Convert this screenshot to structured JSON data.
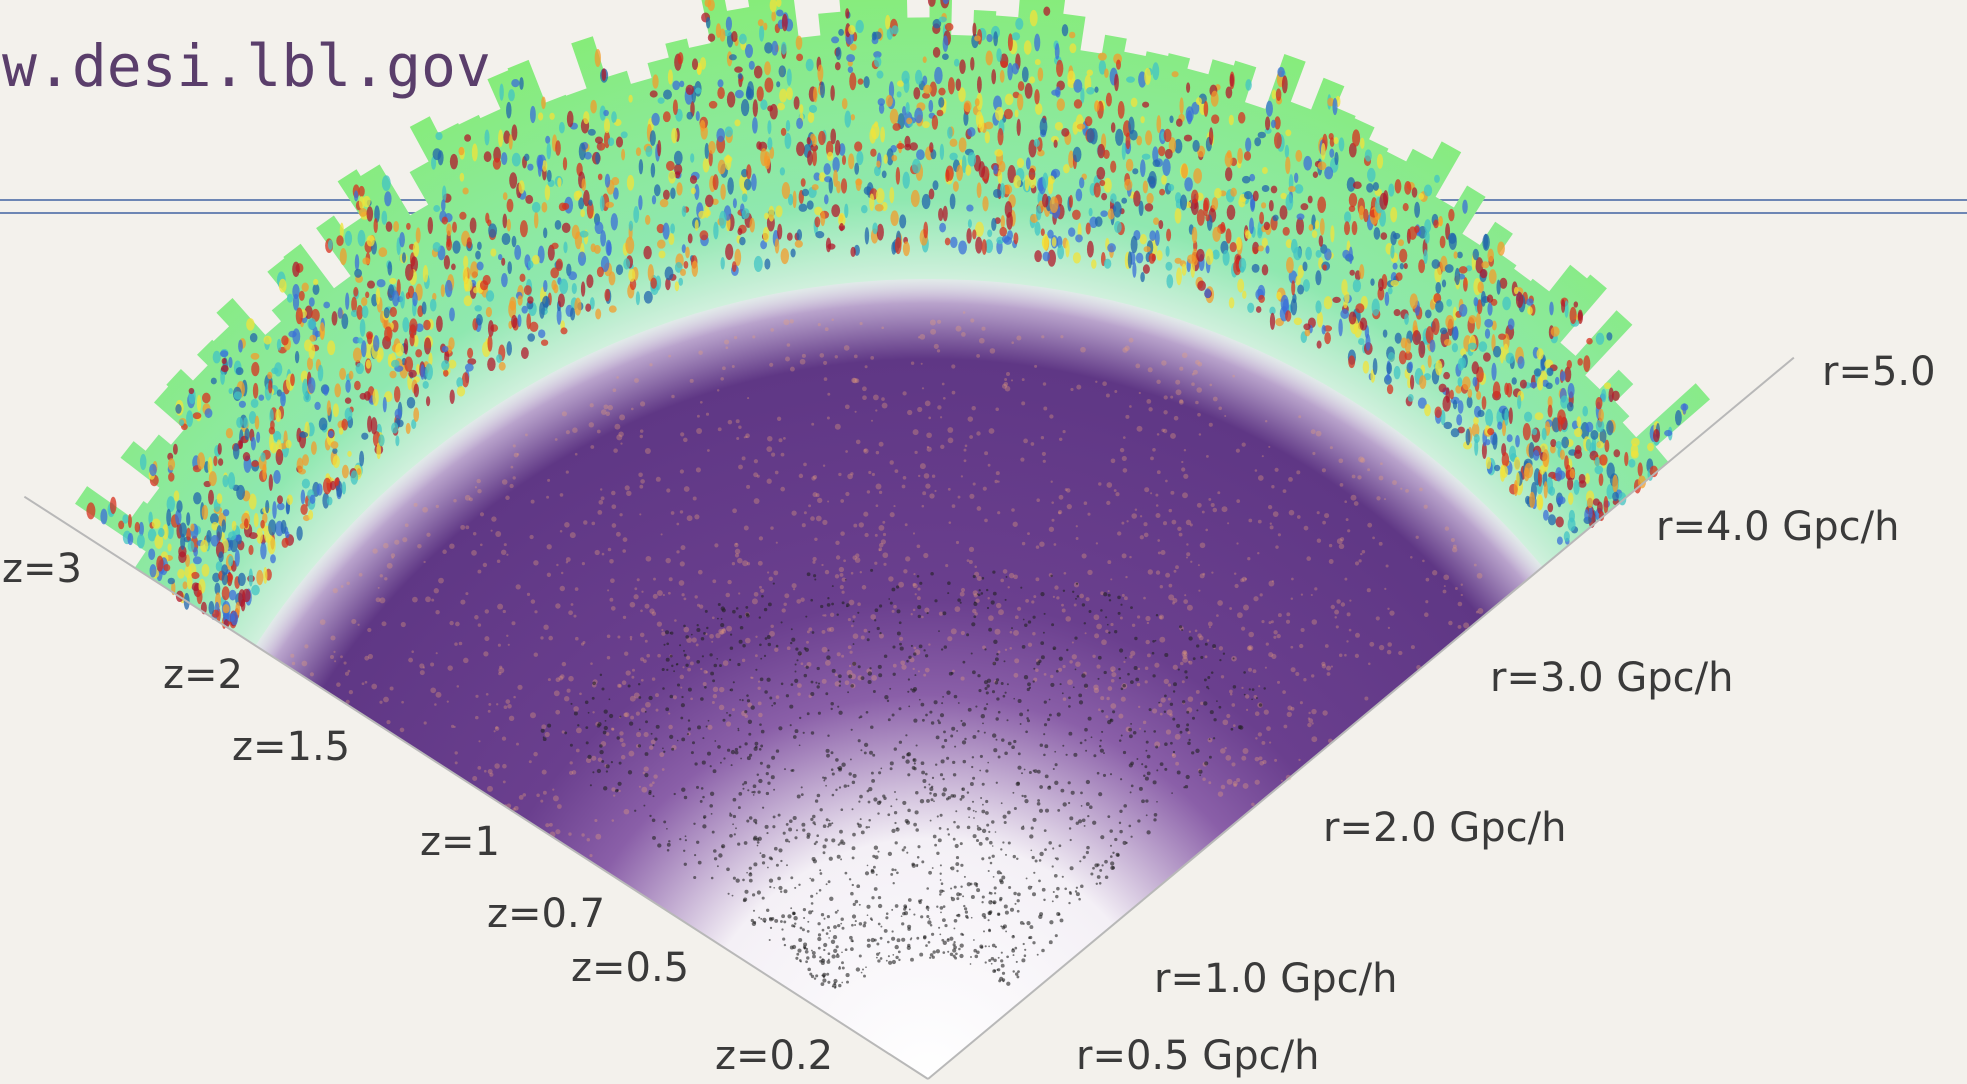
{
  "url": "w.desi.lbl.gov",
  "redshift_labels": [
    "z=3",
    "z=2",
    "z=1.5",
    "z=1",
    "z=0.7",
    "z=0.5",
    "z=0.2"
  ],
  "distance_labels": [
    "r=5.0",
    "r=4.0 Gpc/h",
    "r=3.0 Gpc/h",
    "r=2.0 Gpc/h",
    "r=1.0 Gpc/h",
    "r=0.5 Gpc/h"
  ]
}
